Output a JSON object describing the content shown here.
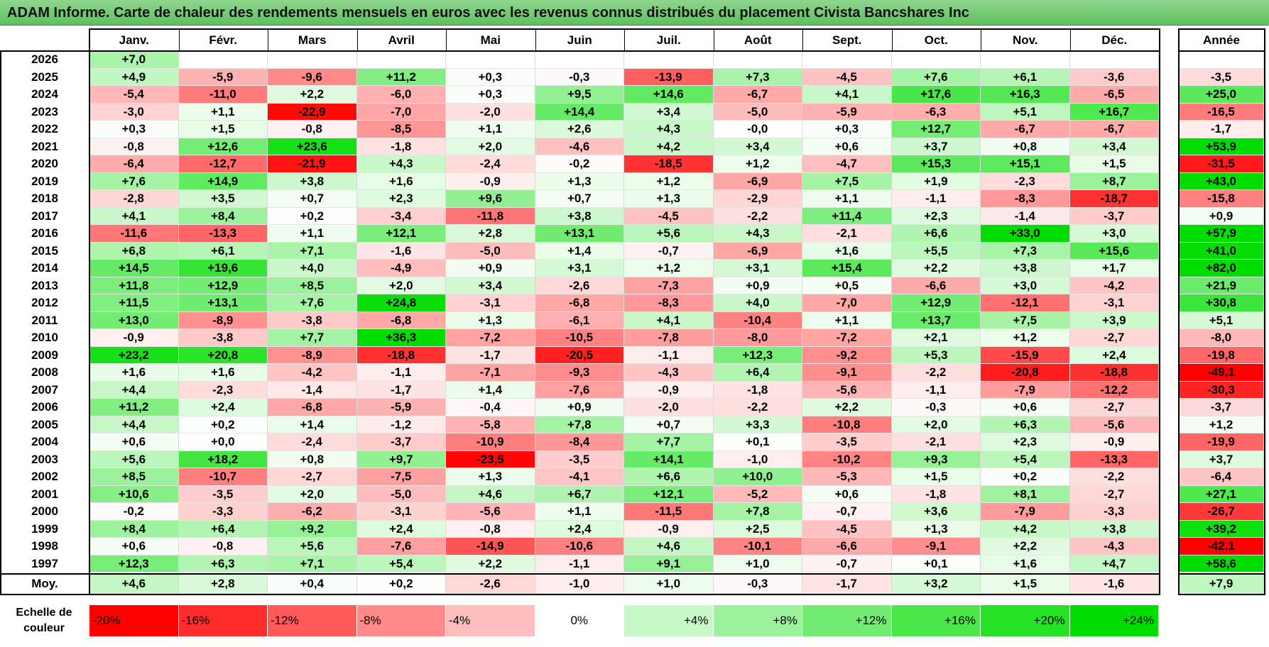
{
  "title": "ADAM Informe. Carte de chaleur des rendements mensuels en euros avec les revenus connus distribués du placement Civista Bancshares Inc",
  "chart_data": {
    "type": "heatmap",
    "months": [
      "Janv.",
      "Févr.",
      "Mars",
      "Avril",
      "Mai",
      "Juin",
      "Juil.",
      "Août",
      "Sept.",
      "Oct.",
      "Nov.",
      "Déc."
    ],
    "annual_header": "Année",
    "avg_label": "Moy.",
    "rows": [
      {
        "year": "2026",
        "values": [
          "+7,0",
          "",
          "",
          "",
          "",
          "",
          "",
          "",
          "",
          "",
          "",
          ""
        ],
        "annual": ""
      },
      {
        "year": "2025",
        "values": [
          "+4,9",
          "-5,9",
          "-9,6",
          "+11,2",
          "+0,3",
          "-0,3",
          "-13,9",
          "+7,3",
          "-4,5",
          "+7,6",
          "+6,1",
          "-3,6"
        ],
        "annual": "-3,5"
      },
      {
        "year": "2024",
        "values": [
          "-5,4",
          "-11,0",
          "+2,2",
          "-6,0",
          "+0,3",
          "+9,5",
          "+14,6",
          "-6,7",
          "+4,1",
          "+17,6",
          "+16,3",
          "-6,5"
        ],
        "annual": "+25,0"
      },
      {
        "year": "2023",
        "values": [
          "-3,0",
          "+1,1",
          "-22,9",
          "-7,0",
          "-2,0",
          "+14,4",
          "+3,4",
          "-5,0",
          "-5,9",
          "-6,3",
          "+5,1",
          "+16,7"
        ],
        "annual": "-16,5"
      },
      {
        "year": "2022",
        "values": [
          "+0,3",
          "+1,5",
          "-0,8",
          "-8,5",
          "+1,1",
          "+2,6",
          "+4,3",
          "-0,0",
          "+0,3",
          "+12,7",
          "-6,7",
          "-6,7"
        ],
        "annual": "-1,7"
      },
      {
        "year": "2021",
        "values": [
          "-0,8",
          "+12,6",
          "+23,6",
          "-1,8",
          "+2,0",
          "-4,6",
          "+4,2",
          "+3,4",
          "+0,6",
          "+3,7",
          "+0,8",
          "+3,4"
        ],
        "annual": "+53,9"
      },
      {
        "year": "2020",
        "values": [
          "-6,4",
          "-12,7",
          "-21,9",
          "+4,3",
          "-2,4",
          "-0,2",
          "-18,5",
          "+1,2",
          "-4,7",
          "+15,3",
          "+15,1",
          "+1,5"
        ],
        "annual": "-31,5"
      },
      {
        "year": "2019",
        "values": [
          "+7,6",
          "+14,9",
          "+3,8",
          "+1,6",
          "-0,9",
          "+1,3",
          "+1,2",
          "-6,9",
          "+7,5",
          "+1,9",
          "-2,3",
          "+8,7"
        ],
        "annual": "+43,0"
      },
      {
        "year": "2018",
        "values": [
          "-2,8",
          "+3,5",
          "+0,7",
          "+2,3",
          "+9,6",
          "+0,7",
          "+1,3",
          "-2,9",
          "+1,1",
          "-1,1",
          "-8,3",
          "-18,7"
        ],
        "annual": "-15,8"
      },
      {
        "year": "2017",
        "values": [
          "+4,1",
          "+8,4",
          "+0,2",
          "-3,4",
          "-11,8",
          "+3,8",
          "-4,5",
          "-2,2",
          "+11,4",
          "+2,3",
          "-1,4",
          "-3,7"
        ],
        "annual": "+0,9"
      },
      {
        "year": "2016",
        "values": [
          "-11,6",
          "-13,3",
          "+1,1",
          "+12,1",
          "+2,8",
          "+13,1",
          "+5,6",
          "+4,3",
          "-2,1",
          "+6,6",
          "+33,0",
          "+3,0"
        ],
        "annual": "+57,9"
      },
      {
        "year": "2015",
        "values": [
          "+6,8",
          "+6,1",
          "+7,1",
          "-1,6",
          "-5,0",
          "+1,4",
          "-0,7",
          "-6,9",
          "+1,6",
          "+5,5",
          "+7,3",
          "+15,6"
        ],
        "annual": "+41,0"
      },
      {
        "year": "2014",
        "values": [
          "+14,5",
          "+19,6",
          "+4,0",
          "-4,9",
          "+0,9",
          "+3,1",
          "+1,2",
          "+3,1",
          "+15,4",
          "+2,2",
          "+3,8",
          "+1,7"
        ],
        "annual": "+82,0"
      },
      {
        "year": "2013",
        "values": [
          "+11,8",
          "+12,9",
          "+8,5",
          "+2,0",
          "+3,4",
          "-2,6",
          "-7,3",
          "+0,9",
          "+0,5",
          "-6,6",
          "+3,0",
          "-4,2"
        ],
        "annual": "+21,9"
      },
      {
        "year": "2012",
        "values": [
          "+11,5",
          "+13,1",
          "+7,6",
          "+24,8",
          "-3,1",
          "-6,8",
          "-8,3",
          "+4,0",
          "-7,0",
          "+12,9",
          "-12,1",
          "-3,1"
        ],
        "annual": "+30,8"
      },
      {
        "year": "2011",
        "values": [
          "+13,0",
          "-8,9",
          "-3,8",
          "-6,8",
          "+1,3",
          "-6,1",
          "+4,1",
          "-10,4",
          "+1,1",
          "+13,7",
          "+7,5",
          "+3,9"
        ],
        "annual": "+5,1"
      },
      {
        "year": "2010",
        "values": [
          "-0,9",
          "-3,8",
          "+7,7",
          "+36,3",
          "-7,2",
          "-10,5",
          "-7,8",
          "-8,0",
          "-7,2",
          "+2,1",
          "+1,2",
          "-2,7"
        ],
        "annual": "-8,0"
      },
      {
        "year": "2009",
        "values": [
          "+23,2",
          "+20,8",
          "-8,9",
          "-18,8",
          "-1,7",
          "-20,5",
          "-1,1",
          "+12,3",
          "-9,2",
          "+5,3",
          "-15,9",
          "+2,4"
        ],
        "annual": "-19,8"
      },
      {
        "year": "2008",
        "values": [
          "+1,6",
          "+1,6",
          "-4,2",
          "-1,1",
          "-7,1",
          "-9,3",
          "-4,3",
          "+6,4",
          "-9,1",
          "-2,2",
          "-20,8",
          "-18,8"
        ],
        "annual": "-49,1"
      },
      {
        "year": "2007",
        "values": [
          "+4,4",
          "-2,3",
          "-1,4",
          "-1,7",
          "+1,4",
          "-7,6",
          "-0,9",
          "-1,8",
          "-5,6",
          "-1,1",
          "-7,9",
          "-12,2"
        ],
        "annual": "-30,3"
      },
      {
        "year": "2006",
        "values": [
          "+11,2",
          "+2,4",
          "-6,8",
          "-5,9",
          "-0,4",
          "+0,9",
          "-2,0",
          "-2,2",
          "+2,2",
          "-0,3",
          "+0,6",
          "-2,7"
        ],
        "annual": "-3,7"
      },
      {
        "year": "2005",
        "values": [
          "+4,4",
          "+0,2",
          "+1,4",
          "-1,2",
          "-5,8",
          "+7,8",
          "+0,7",
          "+3,3",
          "-10,8",
          "+2,0",
          "+6,3",
          "-5,6"
        ],
        "annual": "+1,2"
      },
      {
        "year": "2004",
        "values": [
          "+0,6",
          "+0,0",
          "-2,4",
          "-3,7",
          "-10,9",
          "-8,4",
          "+7,7",
          "+0,1",
          "-3,5",
          "-2,1",
          "+2,3",
          "-0,9"
        ],
        "annual": "-19,9"
      },
      {
        "year": "2003",
        "values": [
          "+5,6",
          "+18,2",
          "+0,8",
          "+9,7",
          "-23,5",
          "-3,5",
          "+14,1",
          "-1,0",
          "-10,2",
          "+9,3",
          "+5,4",
          "-13,3"
        ],
        "annual": "+3,7"
      },
      {
        "year": "2002",
        "values": [
          "+8,5",
          "-10,7",
          "-2,7",
          "-7,5",
          "+1,3",
          "-4,1",
          "+6,6",
          "+10,0",
          "-5,3",
          "+1,5",
          "+0,2",
          "-2,2"
        ],
        "annual": "-6,4"
      },
      {
        "year": "2001",
        "values": [
          "+10,6",
          "-3,5",
          "+2,0",
          "-5,0",
          "+4,6",
          "+6,7",
          "+12,1",
          "-5,2",
          "+0,6",
          "-1,8",
          "+8,1",
          "-2,7"
        ],
        "annual": "+27,1"
      },
      {
        "year": "2000",
        "values": [
          "-0,2",
          "-3,3",
          "-6,2",
          "-3,1",
          "-5,6",
          "+1,1",
          "-11,5",
          "+7,8",
          "-0,7",
          "+3,6",
          "-7,9",
          "-3,3"
        ],
        "annual": "-26,7"
      },
      {
        "year": "1999",
        "values": [
          "+8,4",
          "+6,4",
          "+9,2",
          "+2,4",
          "-0,8",
          "+2,4",
          "-0,9",
          "+2,5",
          "-4,5",
          "+1,3",
          "+4,2",
          "+3,8"
        ],
        "annual": "+39,2"
      },
      {
        "year": "1998",
        "values": [
          "+0,6",
          "-0,8",
          "+5,6",
          "-7,6",
          "-14,9",
          "-10,6",
          "+4,6",
          "-10,1",
          "-6,6",
          "-9,1",
          "+2,2",
          "-4,3"
        ],
        "annual": "-42,1"
      },
      {
        "year": "1997",
        "values": [
          "+12,3",
          "+6,3",
          "+7,1",
          "+5,4",
          "+2,2",
          "-1,1",
          "+9,1",
          "+1,0",
          "-0,7",
          "+0,1",
          "+1,6",
          "+4,7"
        ],
        "annual": "+58,6"
      }
    ],
    "averages": {
      "values": [
        "+4,6",
        "+2,8",
        "+0,4",
        "+0,2",
        "-2,6",
        "-1,0",
        "+1,0",
        "-0,3",
        "-1,7",
        "+3,2",
        "+1,5",
        "-1,6"
      ],
      "annual": "+7,9"
    },
    "color_scale": {
      "title_line1": "Echelle de",
      "title_line2": "couleur",
      "labels": [
        "-20%",
        "-16%",
        "-12%",
        "-8%",
        "-4%",
        "0%",
        "+4%",
        "+8%",
        "+12%",
        "+16%",
        "+20%",
        "+24%"
      ],
      "values": [
        -20,
        -16,
        -12,
        -8,
        -4,
        0,
        4,
        8,
        12,
        16,
        20,
        24
      ]
    },
    "colors": {
      "negative_max": "#ff0000",
      "positive_max": "#00dd00",
      "neutral": "#ffffff",
      "title_bar": "#6cc46c"
    }
  }
}
